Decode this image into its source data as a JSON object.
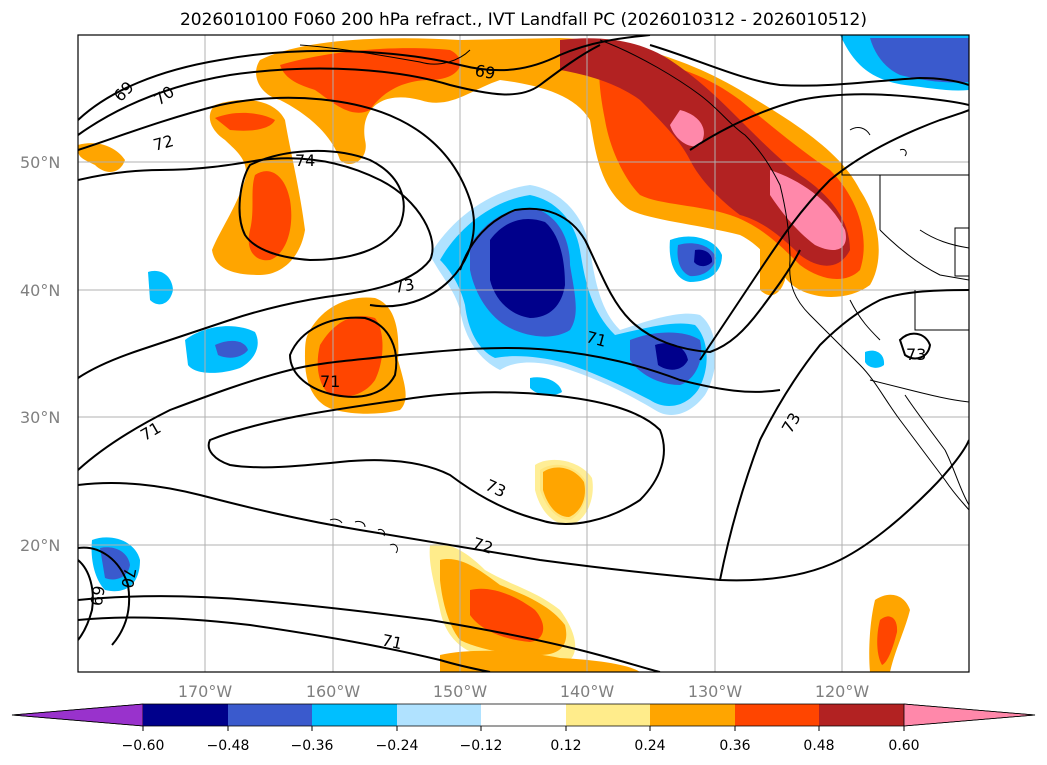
{
  "title": "2026010100 F060 200 hPa refract., IVT Landfall PC (2026010312 - 2026010512)",
  "map": {
    "lat_labels": [
      "50°N",
      "40°N",
      "30°N",
      "20°N"
    ],
    "lon_labels": [
      "170°W",
      "160°W",
      "150°W",
      "140°W",
      "130°W",
      "120°W"
    ],
    "contour_labels": [
      "69",
      "70",
      "72",
      "74",
      "73",
      "71",
      "71",
      "73",
      "71",
      "69",
      "73",
      "73",
      "72",
      "71",
      "69",
      "70"
    ],
    "colors": {
      "land_outline": "#000000",
      "grid": "#b0b0b0",
      "contour": "#000000"
    }
  },
  "colorbar": {
    "ticks": [
      "−0.60",
      "−0.48",
      "−0.36",
      "−0.24",
      "−0.12",
      "0.12",
      "0.24",
      "0.36",
      "0.48",
      "0.60"
    ],
    "colors": [
      "#9932cc",
      "#00008b",
      "#3a5acd",
      "#00bfff",
      "#b0e2ff",
      "#ffffff",
      "#ffec8b",
      "#ffa500",
      "#ff4500",
      "#b22222",
      "#ff88aa"
    ]
  }
}
